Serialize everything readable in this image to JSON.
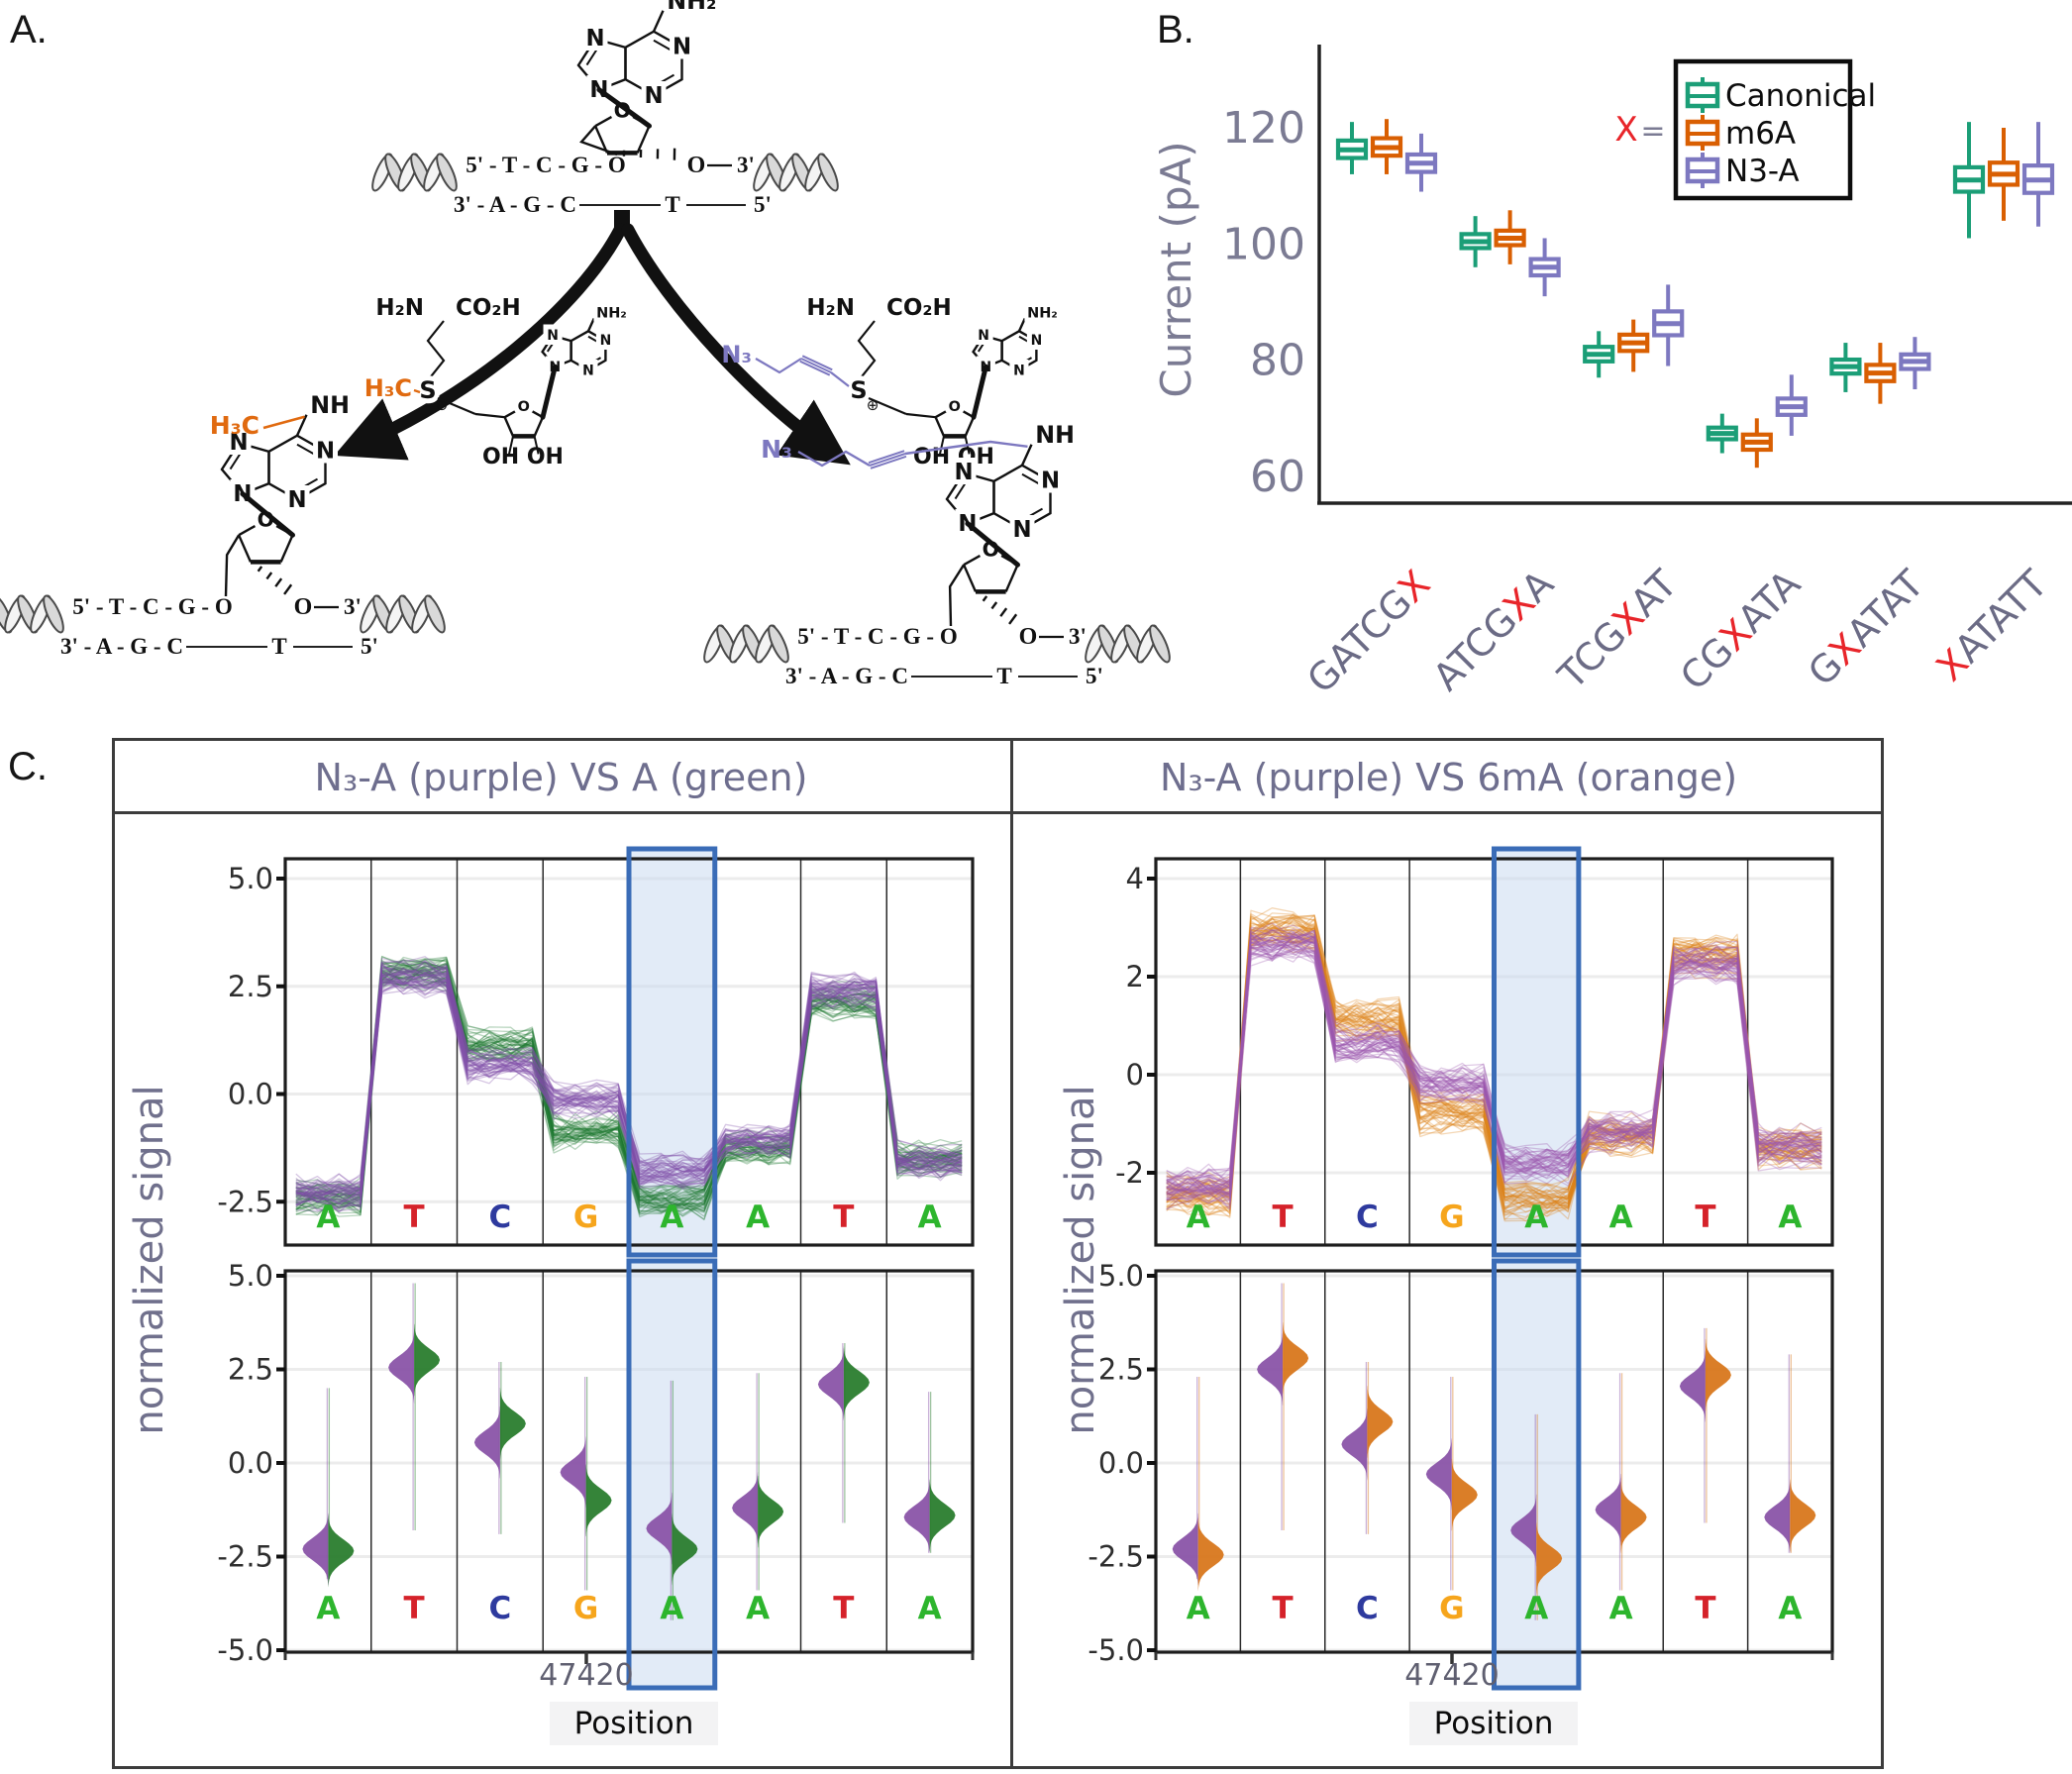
{
  "panelA": {
    "label": "A.",
    "mol": {
      "n": "N",
      "amine": "NH₂",
      "nh": "NH",
      "sugar_o": "O",
      "oh": "OH OH",
      "h2n": "H₂N",
      "co2h": "CO₂H",
      "s": "S",
      "splus": "⊕",
      "h3c": "H₃C",
      "n3": "N₃",
      "methyl_color": "#e06a10",
      "azide_color": "#7d78c0"
    },
    "duplex": {
      "seq_top": "5' - T - C - G - O",
      "o3": "O",
      "prime3": "3'",
      "seq_bot": "3' - A - G - C",
      "t": "T",
      "prime5": "5'"
    }
  },
  "panelB": {
    "label": "B.",
    "chart_data": {
      "type": "grouped_boxplot",
      "ylabel": "Current (pA)",
      "yticks": [
        60,
        80,
        100,
        120
      ],
      "ylim": [
        52,
        132
      ],
      "axis_color": "#7b7b93",
      "red": "#e8252a",
      "legend": {
        "prefix_x": "X",
        "prefix_eq": "=",
        "items": [
          {
            "label": "Canonical",
            "color": "#1b9e77"
          },
          {
            "label": "m6A",
            "color": "#d95f02"
          },
          {
            "label": "N3-A",
            "color": "#7d78c0"
          }
        ]
      },
      "categories": [
        {
          "pre": "GATCG",
          "x": "X",
          "post": ""
        },
        {
          "pre": "ATCG",
          "x": "X",
          "post": "A"
        },
        {
          "pre": "TCG",
          "x": "X",
          "post": "AT"
        },
        {
          "pre": "CG",
          "x": "X",
          "post": "ATA"
        },
        {
          "pre": "G",
          "x": "X",
          "post": "ATAT"
        },
        {
          "pre": "",
          "x": "X",
          "post": "ATATT"
        }
      ],
      "series": [
        {
          "name": "Canonical",
          "color": "#1b9e77",
          "boxes": [
            {
              "lo": 112,
              "q1": 114.8,
              "med": 116.2,
              "q3": 117.8,
              "hi": 121
            },
            {
              "lo": 96,
              "q1": 99.3,
              "med": 100.4,
              "q3": 101.7,
              "hi": 104.8
            },
            {
              "lo": 77,
              "q1": 79.8,
              "med": 81,
              "q3": 82.3,
              "hi": 85
            },
            {
              "lo": 64,
              "q1": 66.4,
              "med": 67.4,
              "q3": 68.4,
              "hi": 70.8
            },
            {
              "lo": 74.5,
              "q1": 77.7,
              "med": 78.9,
              "q3": 80.1,
              "hi": 83
            },
            {
              "lo": 101,
              "q1": 109,
              "med": 111,
              "q3": 113.2,
              "hi": 121
            }
          ]
        },
        {
          "name": "m6A",
          "color": "#d95f02",
          "boxes": [
            {
              "lo": 112,
              "q1": 115.2,
              "med": 116.6,
              "q3": 118.2,
              "hi": 121.5
            },
            {
              "lo": 96.5,
              "q1": 99.8,
              "med": 101,
              "q3": 102.3,
              "hi": 105.8
            },
            {
              "lo": 78,
              "q1": 81.6,
              "med": 83,
              "q3": 84.4,
              "hi": 87
            },
            {
              "lo": 61.5,
              "q1": 64.6,
              "med": 65.9,
              "q3": 67.2,
              "hi": 70
            },
            {
              "lo": 72.5,
              "q1": 76.4,
              "med": 77.8,
              "q3": 79.2,
              "hi": 83
            },
            {
              "lo": 104,
              "q1": 110.2,
              "med": 112,
              "q3": 114,
              "hi": 120
            }
          ]
        },
        {
          "name": "N3-A",
          "color": "#7d78c0",
          "boxes": [
            {
              "lo": 109,
              "q1": 112.4,
              "med": 113.9,
              "q3": 115.4,
              "hi": 119
            },
            {
              "lo": 91,
              "q1": 94.6,
              "med": 96,
              "q3": 97.4,
              "hi": 101
            },
            {
              "lo": 79,
              "q1": 84.3,
              "med": 86.3,
              "q3": 88.4,
              "hi": 93
            },
            {
              "lo": 67,
              "q1": 70.6,
              "med": 72,
              "q3": 73.4,
              "hi": 77.5
            },
            {
              "lo": 75,
              "q1": 78.5,
              "med": 79.8,
              "q3": 81,
              "hi": 84
            },
            {
              "lo": 103,
              "q1": 108.8,
              "med": 111,
              "q3": 113.5,
              "hi": 121
            }
          ]
        }
      ]
    }
  },
  "panelC": {
    "label": "C.",
    "ylabel": "normalized signal",
    "xlabel": "Position",
    "xtick": "47420",
    "letters": [
      "A",
      "T",
      "C",
      "G",
      "A",
      "A",
      "T",
      "A"
    ],
    "letter_colors": {
      "A": "#2db52d",
      "T": "#d5222a",
      "C": "#2e3a9e",
      "G": "#f6a51c"
    },
    "highlight_index": 4,
    "highlight": {
      "stroke": "#3a6cb7",
      "fill": "rgba(203,219,240,0.55)"
    },
    "left": {
      "title": "N₃-A (purple) VS A (green)",
      "chart_data": {
        "type": "signal-traces+split-violin",
        "columns": [
          "A",
          "T",
          "C",
          "G",
          "A",
          "A",
          "T",
          "A"
        ],
        "traces": {
          "yticks": {
            "values": [
              5,
              2.5,
              0,
              -2.5
            ],
            "labels": [
              "5.0",
              "2.5",
              "0.0",
              "-2.5"
            ]
          },
          "series": [
            {
              "name": "A (green)",
              "color": "#1f7a33",
              "levels": [
                -2.4,
                2.85,
                1.15,
                -0.85,
                -2.45,
                -1.25,
                2.15,
                -1.5
              ]
            },
            {
              "name": "N3-A (purple)",
              "color": "#7e4fa8",
              "levels": [
                -2.3,
                2.7,
                0.7,
                -0.15,
                -1.8,
                -1.1,
                2.4,
                -1.55
              ]
            }
          ]
        },
        "violins": {
          "yticks": {
            "values": [
              5,
              2.5,
              0,
              -2.5,
              -5
            ],
            "labels": [
              "5.0",
              "2.5",
              "0.0",
              "-2.5",
              "-5.0"
            ]
          },
          "left_half": {
            "name": "N3-A (purple)",
            "color": "#8a54a8",
            "centers": [
              -2.3,
              2.55,
              0.55,
              -0.25,
              -1.75,
              -1.2,
              2.1,
              -1.45
            ]
          },
          "right_half": {
            "name": "A (green)",
            "color": "#2a7d2e",
            "centers": [
              -2.35,
              2.75,
              1.05,
              -1.0,
              -2.3,
              -1.3,
              2.15,
              -1.4
            ]
          },
          "tail_lo": [
            -3.1,
            -1.8,
            -1.9,
            -3.4,
            -4.2,
            -3.4,
            -1.6,
            -2.4
          ],
          "tail_hi": [
            2.0,
            4.8,
            2.7,
            2.3,
            2.2,
            2.4,
            3.2,
            1.9
          ]
        }
      }
    },
    "right": {
      "title": "N₃-A (purple) VS 6mA (orange)",
      "chart_data": {
        "type": "signal-traces+split-violin",
        "columns": [
          "A",
          "T",
          "C",
          "G",
          "A",
          "A",
          "T",
          "A"
        ],
        "traces": {
          "yticks": {
            "values": [
              4,
              2,
              0,
              -2
            ],
            "labels": [
              "4",
              "2",
              "0",
              "-2"
            ]
          },
          "series": [
            {
              "name": "6mA (orange)",
              "color": "#dd8418",
              "levels": [
                -2.45,
                2.9,
                1.1,
                -0.8,
                -2.55,
                -1.25,
                2.45,
                -1.5
              ]
            },
            {
              "name": "N3-A (purple)",
              "color": "#9a56ae",
              "levels": [
                -2.3,
                2.65,
                0.6,
                -0.2,
                -1.8,
                -1.15,
                2.25,
                -1.5
              ]
            }
          ]
        },
        "violins": {
          "yticks": {
            "values": [
              5,
              2.5,
              0,
              -2.5,
              -5
            ],
            "labels": [
              "5.0",
              "2.5",
              "0.0",
              "-2.5",
              "-5.0"
            ]
          },
          "left_half": {
            "name": "N3-A (purple)",
            "color": "#8a54a8",
            "centers": [
              -2.3,
              2.5,
              0.5,
              -0.3,
              -1.8,
              -1.25,
              2.05,
              -1.45
            ]
          },
          "right_half": {
            "name": "6mA (orange)",
            "color": "#d8771c",
            "centers": [
              -2.45,
              2.8,
              1.1,
              -0.85,
              -2.55,
              -1.45,
              2.35,
              -1.4
            ]
          },
          "tail_lo": [
            -3.1,
            -1.8,
            -1.9,
            -3.4,
            -4.2,
            -3.4,
            -1.6,
            -2.4
          ],
          "tail_hi": [
            2.3,
            4.8,
            2.7,
            2.3,
            1.3,
            2.4,
            3.6,
            2.9
          ]
        }
      }
    }
  }
}
